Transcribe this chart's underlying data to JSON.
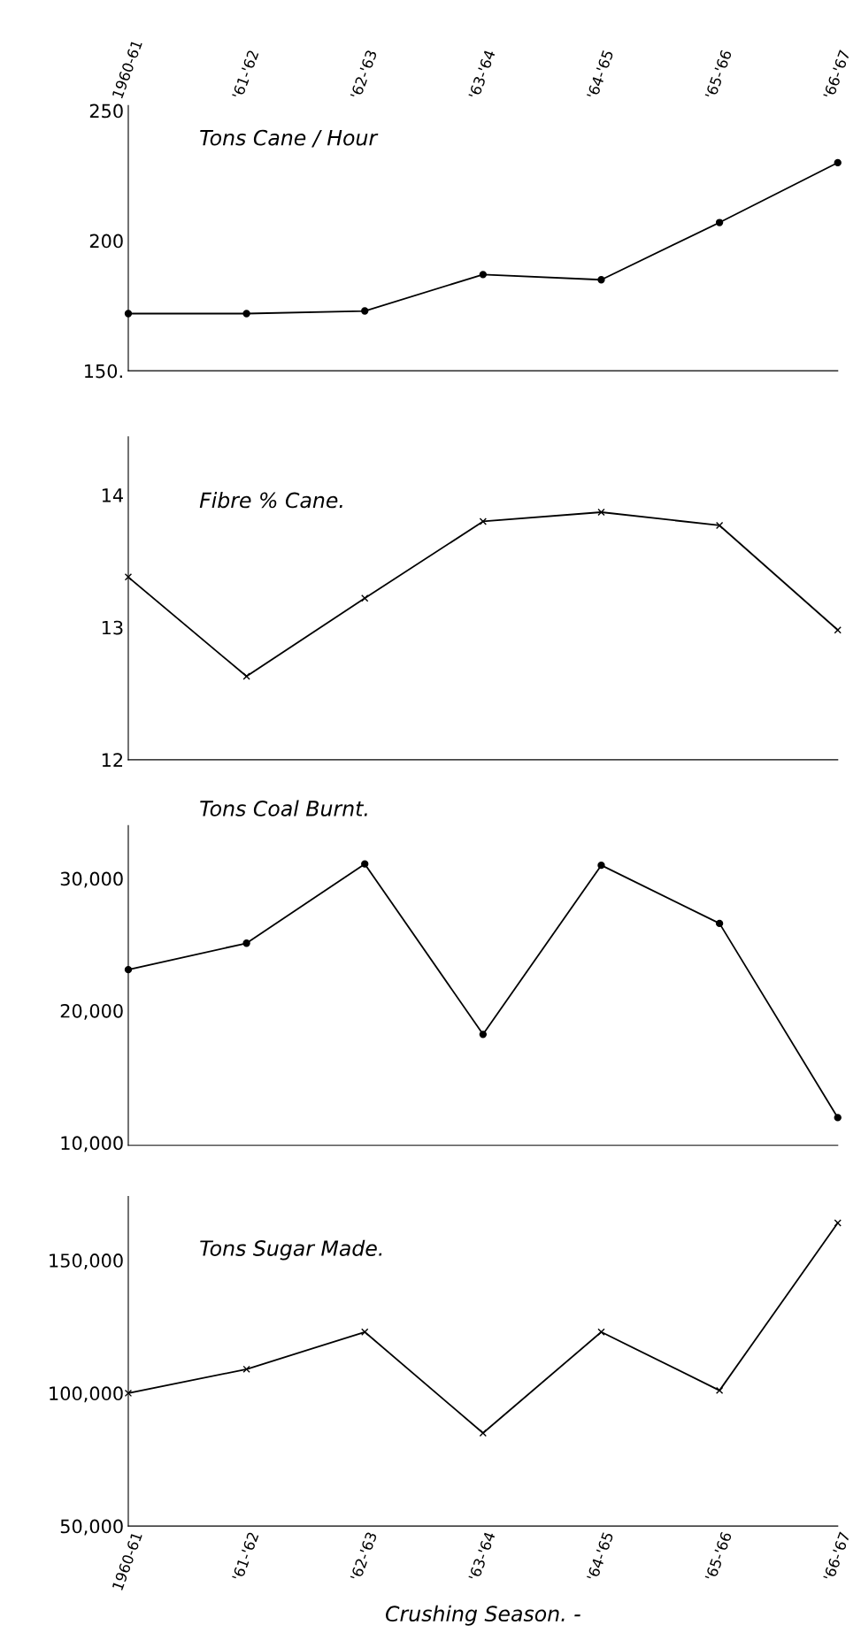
{
  "chart_data": [
    {
      "type": "line",
      "title": "Tons Cane / Hour",
      "categories": [
        "1960-61",
        "'61-'62",
        "'62-'63",
        "'63-'64",
        "'64-'65",
        "'65-'66",
        "'66-'67"
      ],
      "series": [
        {
          "color": "#000000",
          "values": [
            172,
            172,
            173,
            187,
            185,
            207,
            230
          ]
        }
      ],
      "ylim": [
        150,
        252
      ],
      "yticks": [
        {
          "value": 150,
          "label": "150."
        },
        200,
        250
      ],
      "marker": "circle",
      "grid": false,
      "legend": false
    },
    {
      "type": "line",
      "title": "Fibre % Cane.",
      "categories": [
        null,
        null,
        null,
        null,
        null,
        null,
        null
      ],
      "series": [
        {
          "color": "#000000",
          "values": [
            13.38,
            12.63,
            13.22,
            13.8,
            13.87,
            13.77,
            12.98
          ]
        }
      ],
      "ylim": [
        12,
        14.44
      ],
      "yticks": [
        12,
        13,
        14
      ],
      "marker": "cross",
      "tick_labels": "y",
      "grid": false,
      "legend": false
    },
    {
      "type": "line",
      "title": "Tons Coal Burnt.",
      "categories": [
        null,
        null,
        null,
        null,
        null,
        null,
        null
      ],
      "series": [
        {
          "color": "#000000",
          "values": [
            23100,
            25100,
            31100,
            18200,
            31000,
            26600,
            11900
          ]
        }
      ],
      "ylim": [
        9800,
        34000
      ],
      "yticks": [
        {
          "value": 10000,
          "label": "10,000"
        },
        {
          "value": 20000,
          "label": "20,000"
        },
        {
          "value": 30000,
          "label": "30,000"
        }
      ],
      "marker": "circle",
      "tick_labels": "y",
      "grid": false,
      "legend": false
    },
    {
      "type": "line",
      "title": "Tons Sugar Made.",
      "xlabel": "Crushing Season. -",
      "categories": [
        "1960-61",
        "'61-'62",
        "'62-'63",
        "'63-'64",
        "'64-'65",
        "'65-'66",
        "'66-'67"
      ],
      "series": [
        {
          "color": "#000000",
          "values": [
            100000,
            109000,
            123000,
            85000,
            123000,
            101000,
            164000
          ]
        }
      ],
      "ylim": [
        50000,
        174000
      ],
      "yticks": [
        {
          "value": 50000,
          "label": "50,000"
        },
        {
          "value": 100000,
          "label": "100,000"
        },
        {
          "value": 150000,
          "label": "150,000"
        }
      ],
      "marker": "cross",
      "grid": false,
      "legend": false
    }
  ]
}
